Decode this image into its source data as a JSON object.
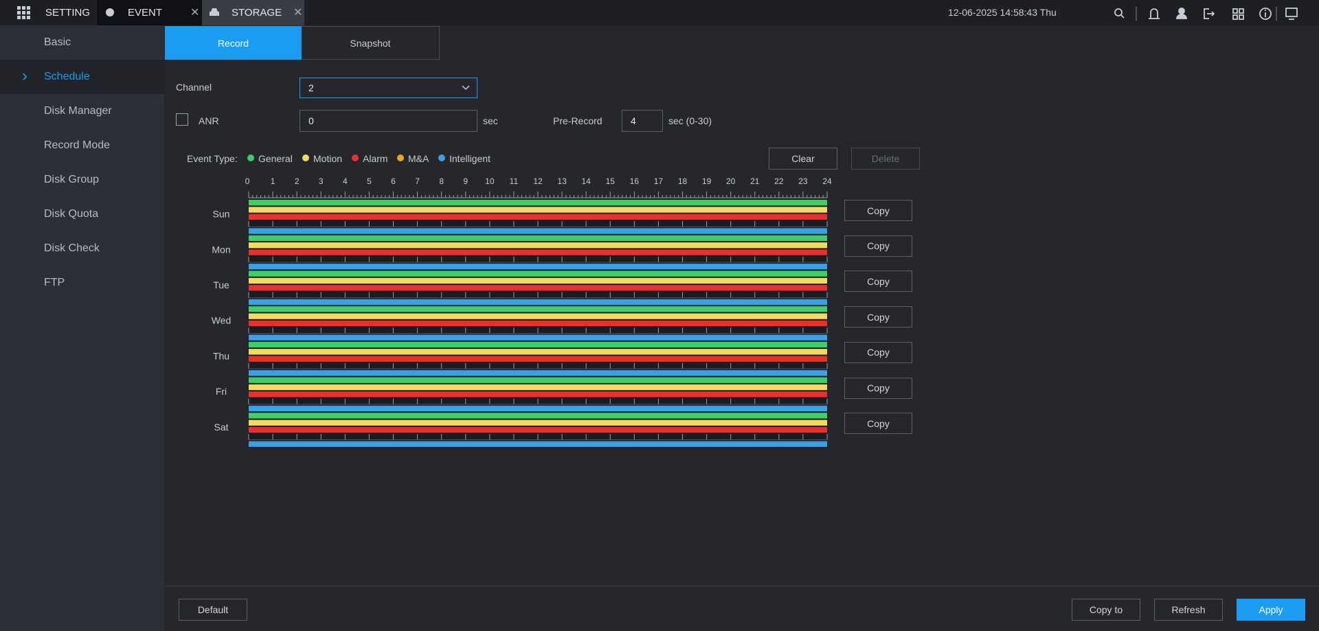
{
  "topbar": {
    "tabs": [
      "SETTING",
      "EVENT",
      "STORAGE"
    ],
    "datetime": "12-06-2025 14:58:43 Thu"
  },
  "sidebar": {
    "items": [
      "Basic",
      "Schedule",
      "Disk Manager",
      "Record Mode",
      "Disk Group",
      "Disk Quota",
      "Disk Check",
      "FTP"
    ],
    "selected": 1
  },
  "tabs": {
    "items": [
      "Record",
      "Snapshot"
    ],
    "selected": 0
  },
  "form": {
    "channel_label": "Channel",
    "channel_value": "2",
    "anr_label": "ANR",
    "anr_value": "0",
    "anr_unit": "sec",
    "prerecord_label": "Pre-Record",
    "prerecord_value": "4",
    "prerecord_unit": "sec (0-30)"
  },
  "event_type_label": "Event Type:",
  "event_types": [
    {
      "name": "General",
      "color": "#3ecf6b"
    },
    {
      "name": "Motion",
      "color": "#f2dc5d"
    },
    {
      "name": "Alarm",
      "color": "#e8312f"
    },
    {
      "name": "M&A",
      "color": "#f0a520"
    },
    {
      "name": "Intelligent",
      "color": "#3aa0e8"
    }
  ],
  "actions": {
    "clear": "Clear",
    "delete": "Delete"
  },
  "hours": [
    "0",
    "1",
    "2",
    "3",
    "4",
    "5",
    "6",
    "7",
    "8",
    "9",
    "10",
    "11",
    "12",
    "13",
    "14",
    "15",
    "16",
    "17",
    "18",
    "19",
    "20",
    "21",
    "22",
    "23",
    "24"
  ],
  "days": [
    "Sun",
    "Mon",
    "Tue",
    "Wed",
    "Thu",
    "Fri",
    "Sat"
  ],
  "copy_label": "Copy",
  "footer": {
    "default": "Default",
    "copy_to": "Copy to",
    "refresh": "Refresh",
    "apply": "Apply"
  }
}
